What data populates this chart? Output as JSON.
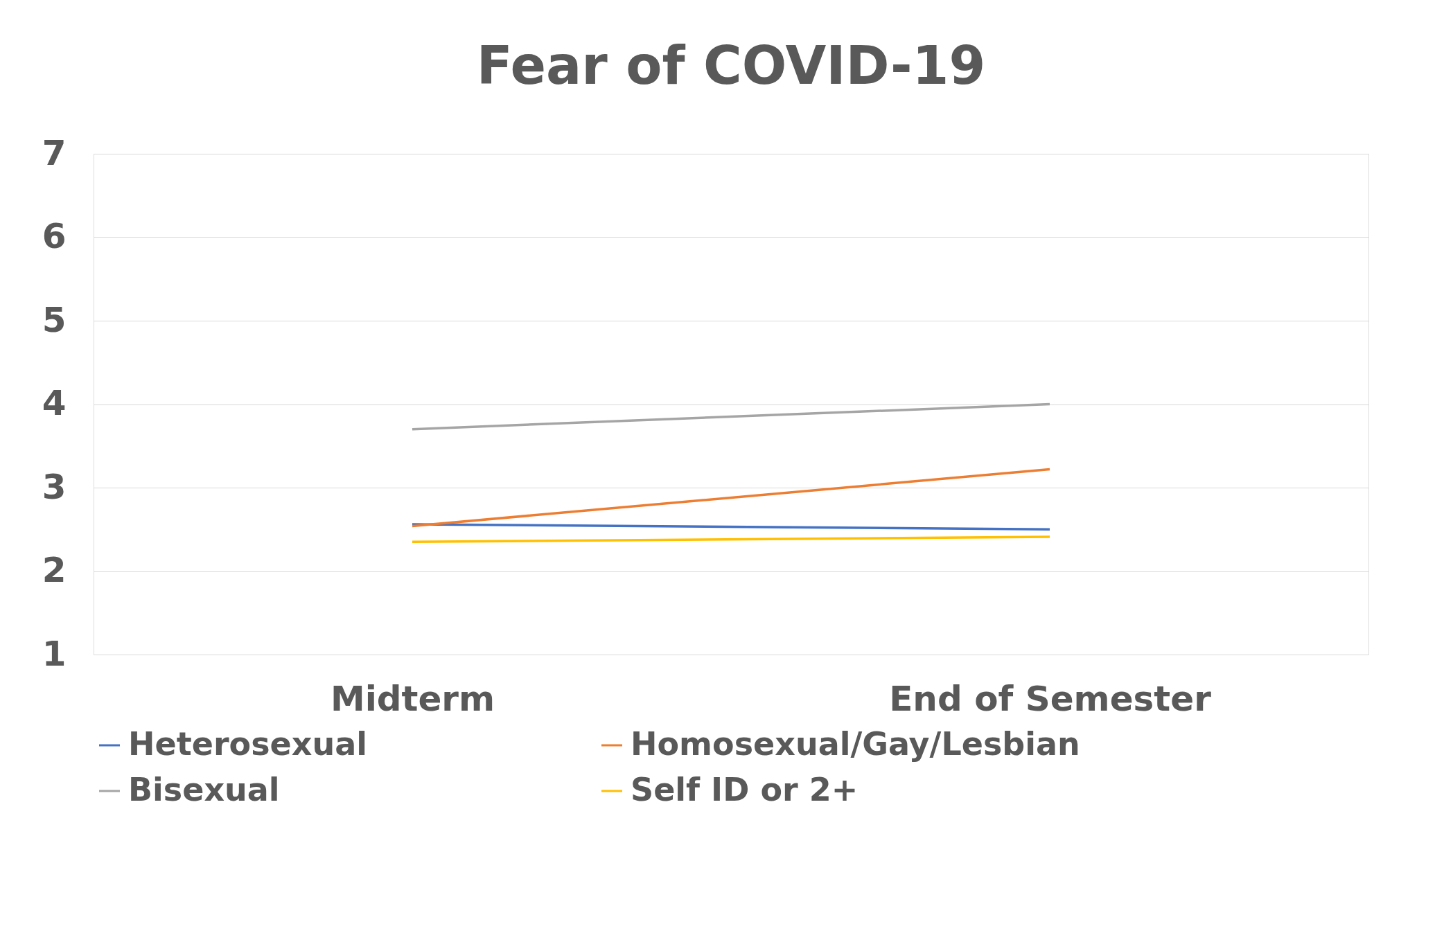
{
  "chart_data": {
    "type": "line",
    "title": "Fear of COVID-19",
    "categories": [
      "Midterm",
      "End of Semester"
    ],
    "series": [
      {
        "name": "Heterosexual",
        "color": "#4472c4",
        "values": [
          2.56,
          2.5
        ]
      },
      {
        "name": "Homosexual/Gay/Lesbian",
        "color": "#ed7d31",
        "values": [
          2.54,
          3.22
        ]
      },
      {
        "name": "Bisexual",
        "color": "#a5a5a5",
        "values": [
          3.7,
          4.0
        ]
      },
      {
        "name": "Self ID or 2+",
        "color": "#ffc000",
        "values": [
          2.35,
          2.41
        ]
      }
    ],
    "ylim": [
      1,
      7
    ],
    "yticks": [
      1,
      2,
      3,
      4,
      5,
      6,
      7
    ],
    "grid": "y",
    "legend": "bottom",
    "marker": "none",
    "line_style": "solid"
  }
}
